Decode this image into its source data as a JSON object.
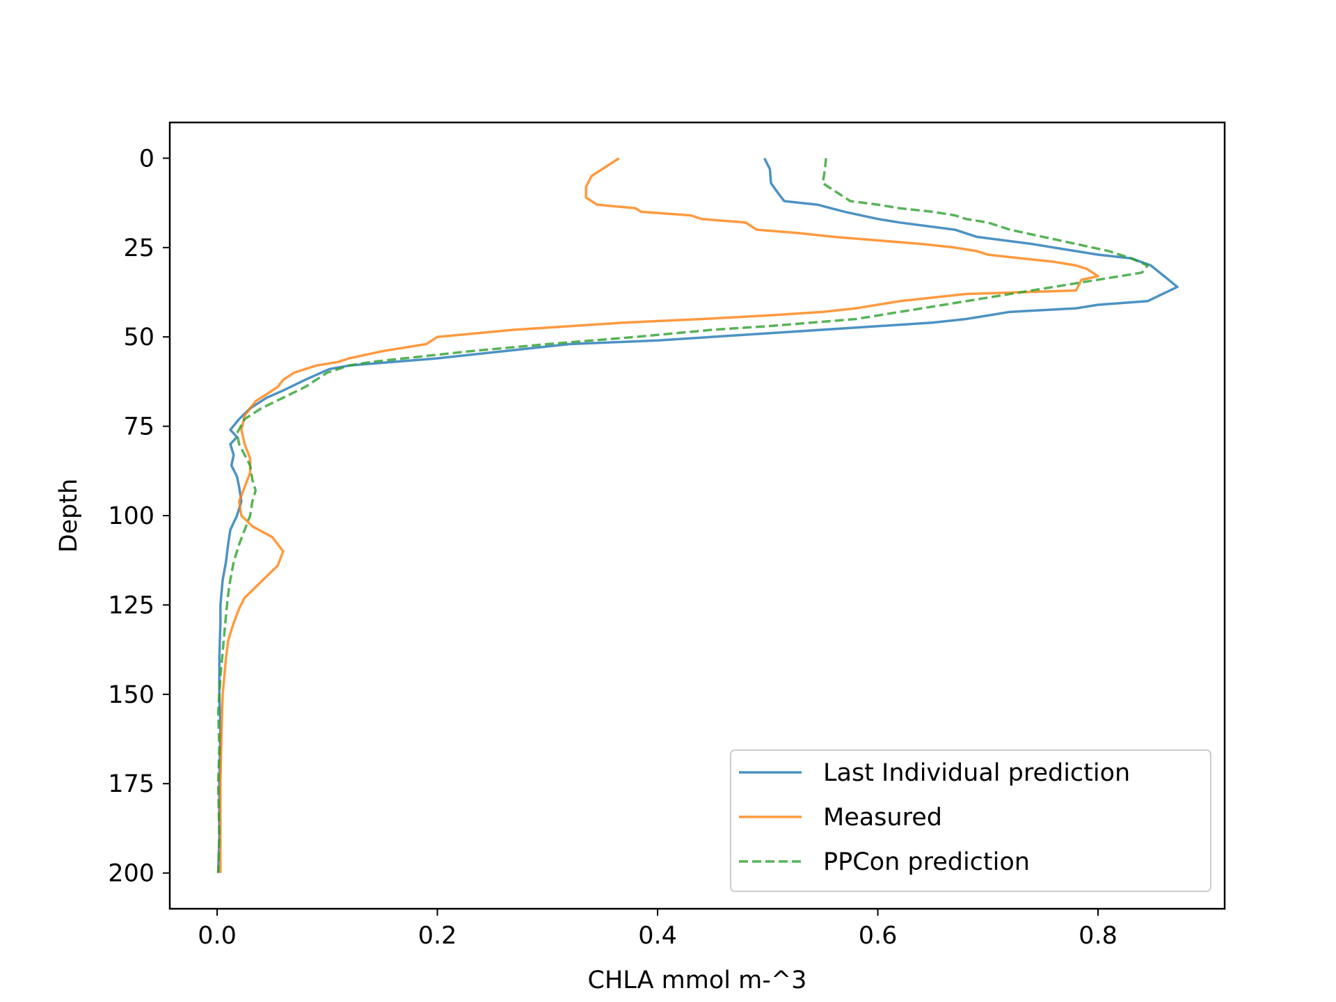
{
  "chart_data": {
    "type": "line",
    "title": "",
    "xlabel": "CHLA mmol m-^3",
    "ylabel": "Depth",
    "xlim": [
      -0.043,
      0.915
    ],
    "ylim": [
      210,
      -10
    ],
    "y_inverted": true,
    "xticks": [
      0.0,
      0.2,
      0.4,
      0.6,
      0.8
    ],
    "xtick_labels": [
      "0.0",
      "0.2",
      "0.4",
      "0.6",
      "0.8"
    ],
    "yticks": [
      0,
      25,
      50,
      75,
      100,
      125,
      150,
      175,
      200
    ],
    "ytick_labels": [
      "0",
      "25",
      "50",
      "75",
      "100",
      "125",
      "150",
      "175",
      "200"
    ],
    "grid": false,
    "legend_position": "lower-right",
    "series": [
      {
        "name": "Last Individual prediction",
        "color": "#1f77b4",
        "dash": "solid",
        "points": [
          [
            0.497,
            0
          ],
          [
            0.502,
            3
          ],
          [
            0.503,
            7
          ],
          [
            0.51,
            10
          ],
          [
            0.515,
            12
          ],
          [
            0.545,
            13
          ],
          [
            0.57,
            15
          ],
          [
            0.6,
            17
          ],
          [
            0.62,
            18
          ],
          [
            0.67,
            20
          ],
          [
            0.69,
            22
          ],
          [
            0.74,
            24
          ],
          [
            0.76,
            25
          ],
          [
            0.8,
            27
          ],
          [
            0.83,
            28
          ],
          [
            0.848,
            30
          ],
          [
            0.86,
            33
          ],
          [
            0.872,
            36
          ],
          [
            0.845,
            40
          ],
          [
            0.8,
            41
          ],
          [
            0.78,
            42
          ],
          [
            0.72,
            43
          ],
          [
            0.7,
            44
          ],
          [
            0.68,
            45
          ],
          [
            0.65,
            46
          ],
          [
            0.6,
            47
          ],
          [
            0.5,
            49
          ],
          [
            0.4,
            51
          ],
          [
            0.32,
            52
          ],
          [
            0.26,
            54
          ],
          [
            0.2,
            56
          ],
          [
            0.16,
            57
          ],
          [
            0.12,
            58
          ],
          [
            0.102,
            59
          ],
          [
            0.08,
            62
          ],
          [
            0.06,
            65
          ],
          [
            0.045,
            67
          ],
          [
            0.03,
            70
          ],
          [
            0.02,
            73
          ],
          [
            0.012,
            76
          ],
          [
            0.018,
            78
          ],
          [
            0.012,
            80
          ],
          [
            0.015,
            83
          ],
          [
            0.013,
            86
          ],
          [
            0.018,
            89
          ],
          [
            0.02,
            92
          ],
          [
            0.022,
            96
          ],
          [
            0.018,
            100
          ],
          [
            0.012,
            104
          ],
          [
            0.01,
            108
          ],
          [
            0.008,
            113
          ],
          [
            0.005,
            118
          ],
          [
            0.003,
            125
          ],
          [
            0.003,
            130
          ],
          [
            0.002,
            140
          ],
          [
            0.002,
            150
          ],
          [
            0.003,
            160
          ],
          [
            0.002,
            175
          ],
          [
            0.002,
            190
          ],
          [
            0.001,
            200
          ]
        ]
      },
      {
        "name": "Measured",
        "color": "#ff7f0e",
        "dash": "solid",
        "points": [
          [
            0.365,
            0
          ],
          [
            0.355,
            2
          ],
          [
            0.34,
            5
          ],
          [
            0.335,
            8
          ],
          [
            0.335,
            11
          ],
          [
            0.345,
            13
          ],
          [
            0.38,
            14
          ],
          [
            0.385,
            15
          ],
          [
            0.43,
            16
          ],
          [
            0.44,
            17
          ],
          [
            0.48,
            18
          ],
          [
            0.49,
            20
          ],
          [
            0.53,
            21
          ],
          [
            0.56,
            22
          ],
          [
            0.6,
            23
          ],
          [
            0.64,
            24
          ],
          [
            0.67,
            25
          ],
          [
            0.69,
            26
          ],
          [
            0.7,
            27
          ],
          [
            0.73,
            28
          ],
          [
            0.76,
            29
          ],
          [
            0.78,
            30
          ],
          [
            0.79,
            31
          ],
          [
            0.8,
            33
          ],
          [
            0.785,
            34
          ],
          [
            0.78,
            37
          ],
          [
            0.68,
            38
          ],
          [
            0.62,
            40
          ],
          [
            0.58,
            42
          ],
          [
            0.55,
            43
          ],
          [
            0.5,
            44
          ],
          [
            0.44,
            45
          ],
          [
            0.37,
            46
          ],
          [
            0.32,
            47
          ],
          [
            0.27,
            48
          ],
          [
            0.2,
            50
          ],
          [
            0.19,
            52
          ],
          [
            0.15,
            54
          ],
          [
            0.12,
            56
          ],
          [
            0.11,
            57
          ],
          [
            0.09,
            58
          ],
          [
            0.07,
            60
          ],
          [
            0.06,
            62
          ],
          [
            0.055,
            64
          ],
          [
            0.045,
            66
          ],
          [
            0.035,
            68
          ],
          [
            0.025,
            72
          ],
          [
            0.022,
            76
          ],
          [
            0.025,
            80
          ],
          [
            0.03,
            84
          ],
          [
            0.03,
            88
          ],
          [
            0.025,
            92
          ],
          [
            0.02,
            96
          ],
          [
            0.022,
            100
          ],
          [
            0.032,
            103
          ],
          [
            0.05,
            106
          ],
          [
            0.06,
            110
          ],
          [
            0.055,
            114
          ],
          [
            0.045,
            117
          ],
          [
            0.035,
            120
          ],
          [
            0.025,
            123
          ],
          [
            0.02,
            126
          ],
          [
            0.015,
            130
          ],
          [
            0.01,
            135
          ],
          [
            0.008,
            140
          ],
          [
            0.005,
            150
          ],
          [
            0.004,
            160
          ],
          [
            0.003,
            175
          ],
          [
            0.003,
            190
          ],
          [
            0.003,
            200
          ]
        ]
      },
      {
        "name": "PPCon prediction",
        "color": "#2ca02c",
        "dash": "dashed",
        "points": [
          [
            0.553,
            0
          ],
          [
            0.552,
            3
          ],
          [
            0.55,
            7
          ],
          [
            0.56,
            9
          ],
          [
            0.575,
            12
          ],
          [
            0.6,
            13
          ],
          [
            0.62,
            14
          ],
          [
            0.65,
            15
          ],
          [
            0.67,
            16
          ],
          [
            0.68,
            17
          ],
          [
            0.7,
            18
          ],
          [
            0.72,
            20
          ],
          [
            0.75,
            22
          ],
          [
            0.78,
            24
          ],
          [
            0.81,
            26
          ],
          [
            0.83,
            28
          ],
          [
            0.845,
            30
          ],
          [
            0.84,
            32
          ],
          [
            0.82,
            33
          ],
          [
            0.8,
            34
          ],
          [
            0.78,
            35
          ],
          [
            0.74,
            37
          ],
          [
            0.7,
            39
          ],
          [
            0.66,
            41
          ],
          [
            0.62,
            43
          ],
          [
            0.58,
            45
          ],
          [
            0.5,
            47
          ],
          [
            0.45,
            48
          ],
          [
            0.38,
            50
          ],
          [
            0.3,
            52
          ],
          [
            0.23,
            54
          ],
          [
            0.17,
            56
          ],
          [
            0.14,
            57
          ],
          [
            0.12,
            58
          ],
          [
            0.1,
            60
          ],
          [
            0.09,
            62
          ],
          [
            0.08,
            64
          ],
          [
            0.06,
            67
          ],
          [
            0.04,
            70
          ],
          [
            0.025,
            73
          ],
          [
            0.018,
            77
          ],
          [
            0.02,
            80
          ],
          [
            0.025,
            83
          ],
          [
            0.03,
            86
          ],
          [
            0.032,
            90
          ],
          [
            0.035,
            93
          ],
          [
            0.032,
            96
          ],
          [
            0.03,
            100
          ],
          [
            0.025,
            104
          ],
          [
            0.02,
            108
          ],
          [
            0.015,
            113
          ],
          [
            0.012,
            118
          ],
          [
            0.01,
            122
          ],
          [
            0.008,
            128
          ],
          [
            0.006,
            135
          ],
          [
            0.003,
            145
          ],
          [
            0.001,
            155
          ],
          [
            0.002,
            165
          ],
          [
            0.001,
            175
          ],
          [
            0.002,
            190
          ],
          [
            0.001,
            200
          ]
        ]
      }
    ]
  }
}
